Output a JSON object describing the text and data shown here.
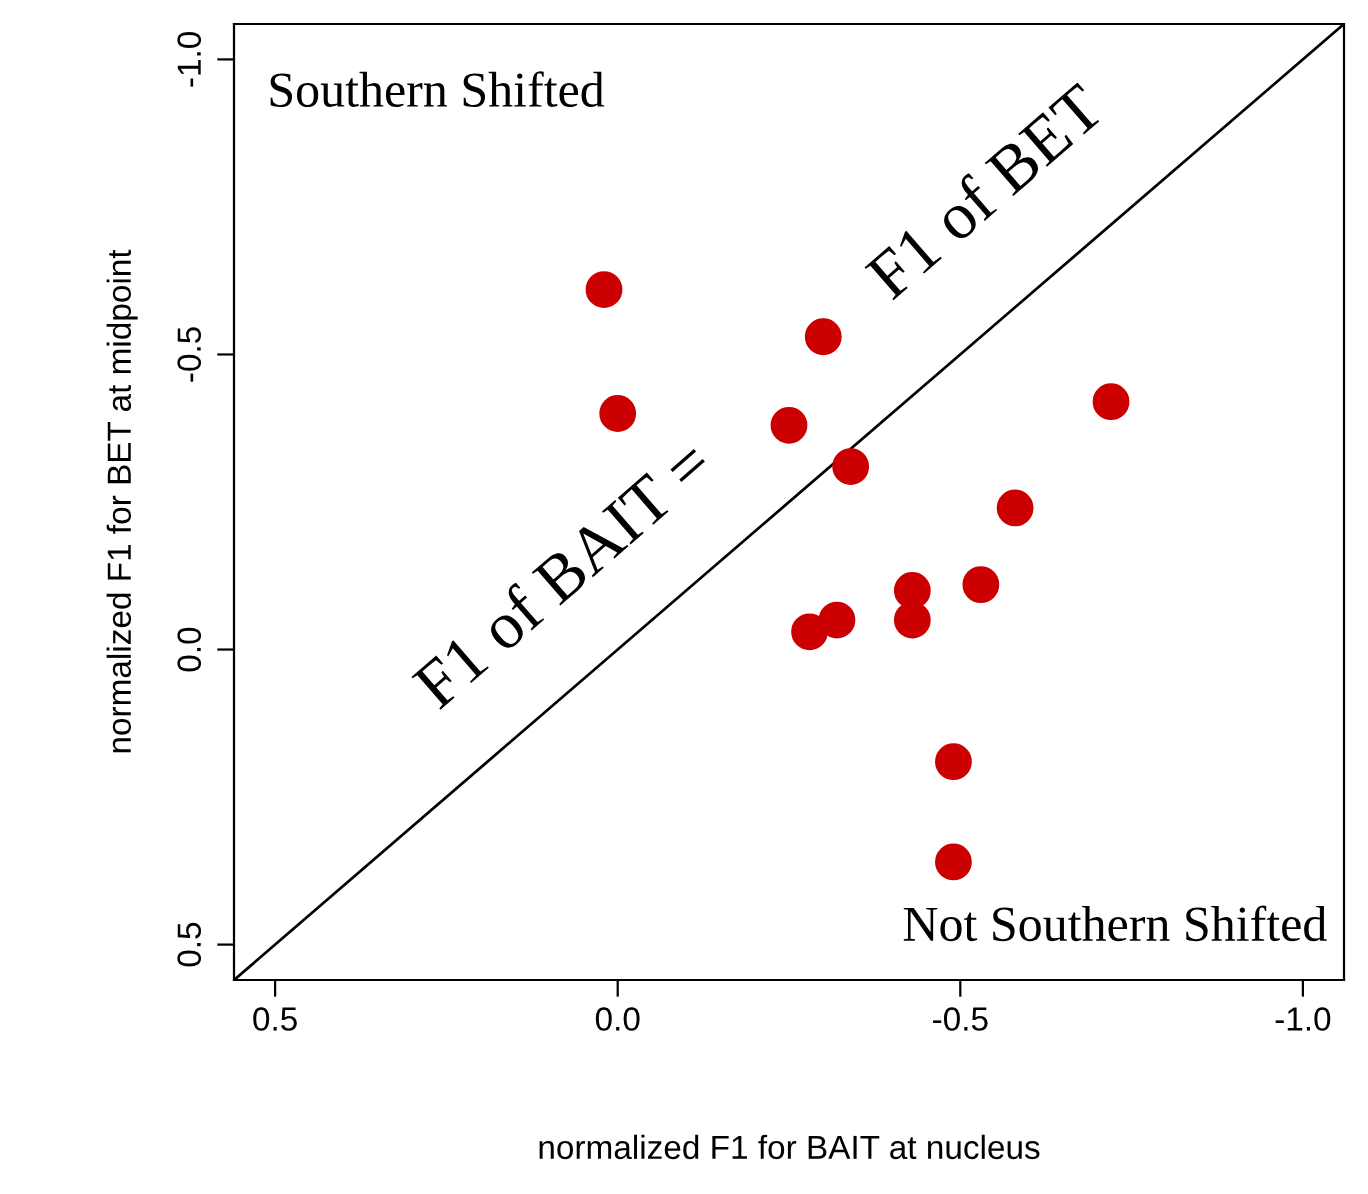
{
  "chart_data": {
    "type": "scatter",
    "xlabel": "normalized F1 for BAIT at nucleus",
    "ylabel": "normalized F1 for BET at midpoint",
    "xlim": [
      0.56,
      -1.06
    ],
    "ylim": [
      0.56,
      -1.06
    ],
    "xticks": [
      0.5,
      {
        "value": 0,
        "label": "0.0"
      },
      -0.5,
      {
        "value": -1,
        "label": "-1.0"
      }
    ],
    "yticks": [
      0.5,
      {
        "value": 0,
        "label": "0.0"
      },
      -0.5,
      {
        "value": -1,
        "label": "-1.0"
      }
    ],
    "grid": false,
    "legend": false,
    "series": [
      {
        "marker": "circle",
        "color": "#cc0000",
        "x": [
          0.02,
          0.0,
          -0.3,
          -0.25,
          -0.34,
          -0.72,
          -0.58,
          -0.28,
          -0.32,
          -0.43,
          -0.43,
          -0.53,
          -0.49,
          -0.49
        ],
        "values": [
          -0.61,
          -0.4,
          -0.53,
          -0.38,
          -0.31,
          -0.42,
          -0.24,
          -0.03,
          -0.05,
          -0.1,
          -0.05,
          -0.11,
          0.19,
          0.36
        ]
      },
      {
        "type": "line",
        "color": "#000000",
        "x": [
          0.56,
          -1.06
        ],
        "values": [
          0.56,
          -1.06
        ]
      }
    ],
    "annotations": [
      "Southern Shifted",
      "Not Southern Shifted",
      "F1 of BAIT =",
      "F1 of BET"
    ]
  }
}
